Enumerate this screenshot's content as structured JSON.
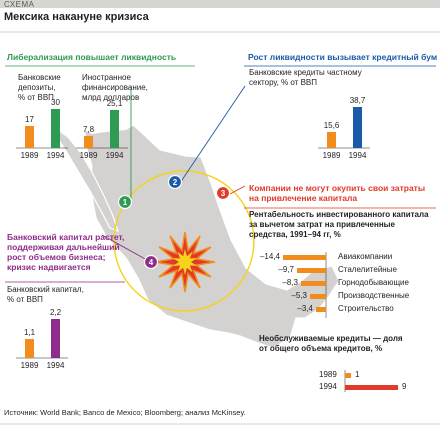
{
  "header": {
    "kicker": "СХЕМА",
    "title": "Мексика накануне кризиса"
  },
  "colors": {
    "green": "#2e9a52",
    "blue": "#1b5aa6",
    "red": "#e03a29",
    "purple": "#8e2d8c",
    "orange": "#f28c1c",
    "map": "#d3d2d0",
    "ring": "#f5d316"
  },
  "markers": [
    "1",
    "2",
    "3",
    "4"
  ],
  "panel1": {
    "title": "Либерализация повышает ликвидность",
    "left_label": [
      "Банковские",
      "депозиты,",
      "% от ВВП"
    ],
    "right_label": [
      "Иностранное",
      "финансирование,",
      "млрд долларов"
    ],
    "left_bars": {
      "years": [
        "1989",
        "1994"
      ],
      "values": [
        17,
        30
      ],
      "value_labels": [
        "17",
        "30"
      ]
    },
    "right_bars": {
      "years": [
        "1989",
        "1994"
      ],
      "values": [
        7.8,
        25.1
      ],
      "value_labels": [
        "7,8",
        "25,1"
      ]
    }
  },
  "panel2": {
    "title": "Рост ликвидности вызывает кредитный бум",
    "label": [
      "Банковские кредиты частному",
      "сектору, % от ВВП"
    ],
    "bars": {
      "years": [
        "1989",
        "1994"
      ],
      "values": [
        15.6,
        38.7
      ],
      "value_labels": [
        "15,6",
        "38,7"
      ]
    }
  },
  "panel3": {
    "title": [
      "Компании не могут окупить свои затраты",
      "на привлечение капитала"
    ],
    "subtitle": [
      "Рентабельность инвестированного капитала",
      "за вычетом затрат на привлеченные",
      "средства, 1991–94 гг, %"
    ],
    "rows": [
      {
        "value": -14.4,
        "value_label": "–14,4",
        "label": "Авиакомпании"
      },
      {
        "value": -9.7,
        "value_label": "–9,7",
        "label": "Сталелитейные"
      },
      {
        "value": -8.3,
        "value_label": "–8,3",
        "label": "Горнодобывающие"
      },
      {
        "value": -5.3,
        "value_label": "–5,3",
        "label": "Производственные"
      },
      {
        "value": -3.4,
        "value_label": "–3,4",
        "label": "Строительство"
      }
    ]
  },
  "panel4": {
    "title": [
      "Банковский капитал растет,",
      "поддерживая дальнейший",
      "рост объемов бизнеса;",
      "кризис надвигается"
    ],
    "label": [
      "Банковский капитал,",
      "% от ВВП"
    ],
    "bars": {
      "years": [
        "1989",
        "1994"
      ],
      "values": [
        1.1,
        2.2
      ],
      "value_labels": [
        "1,1",
        "2,2"
      ]
    }
  },
  "panel5": {
    "title": [
      "Необслуживаемые кредиты — доля",
      "от общего объема кредитов, %"
    ],
    "rows": [
      {
        "year": "1989",
        "value": 1,
        "value_label": "1"
      },
      {
        "year": "1994",
        "value": 9,
        "value_label": "9"
      }
    ]
  },
  "footer": {
    "source": "Источник: World Bank; Banco de Mexico; Bloomberg; анализ McKinsey."
  }
}
